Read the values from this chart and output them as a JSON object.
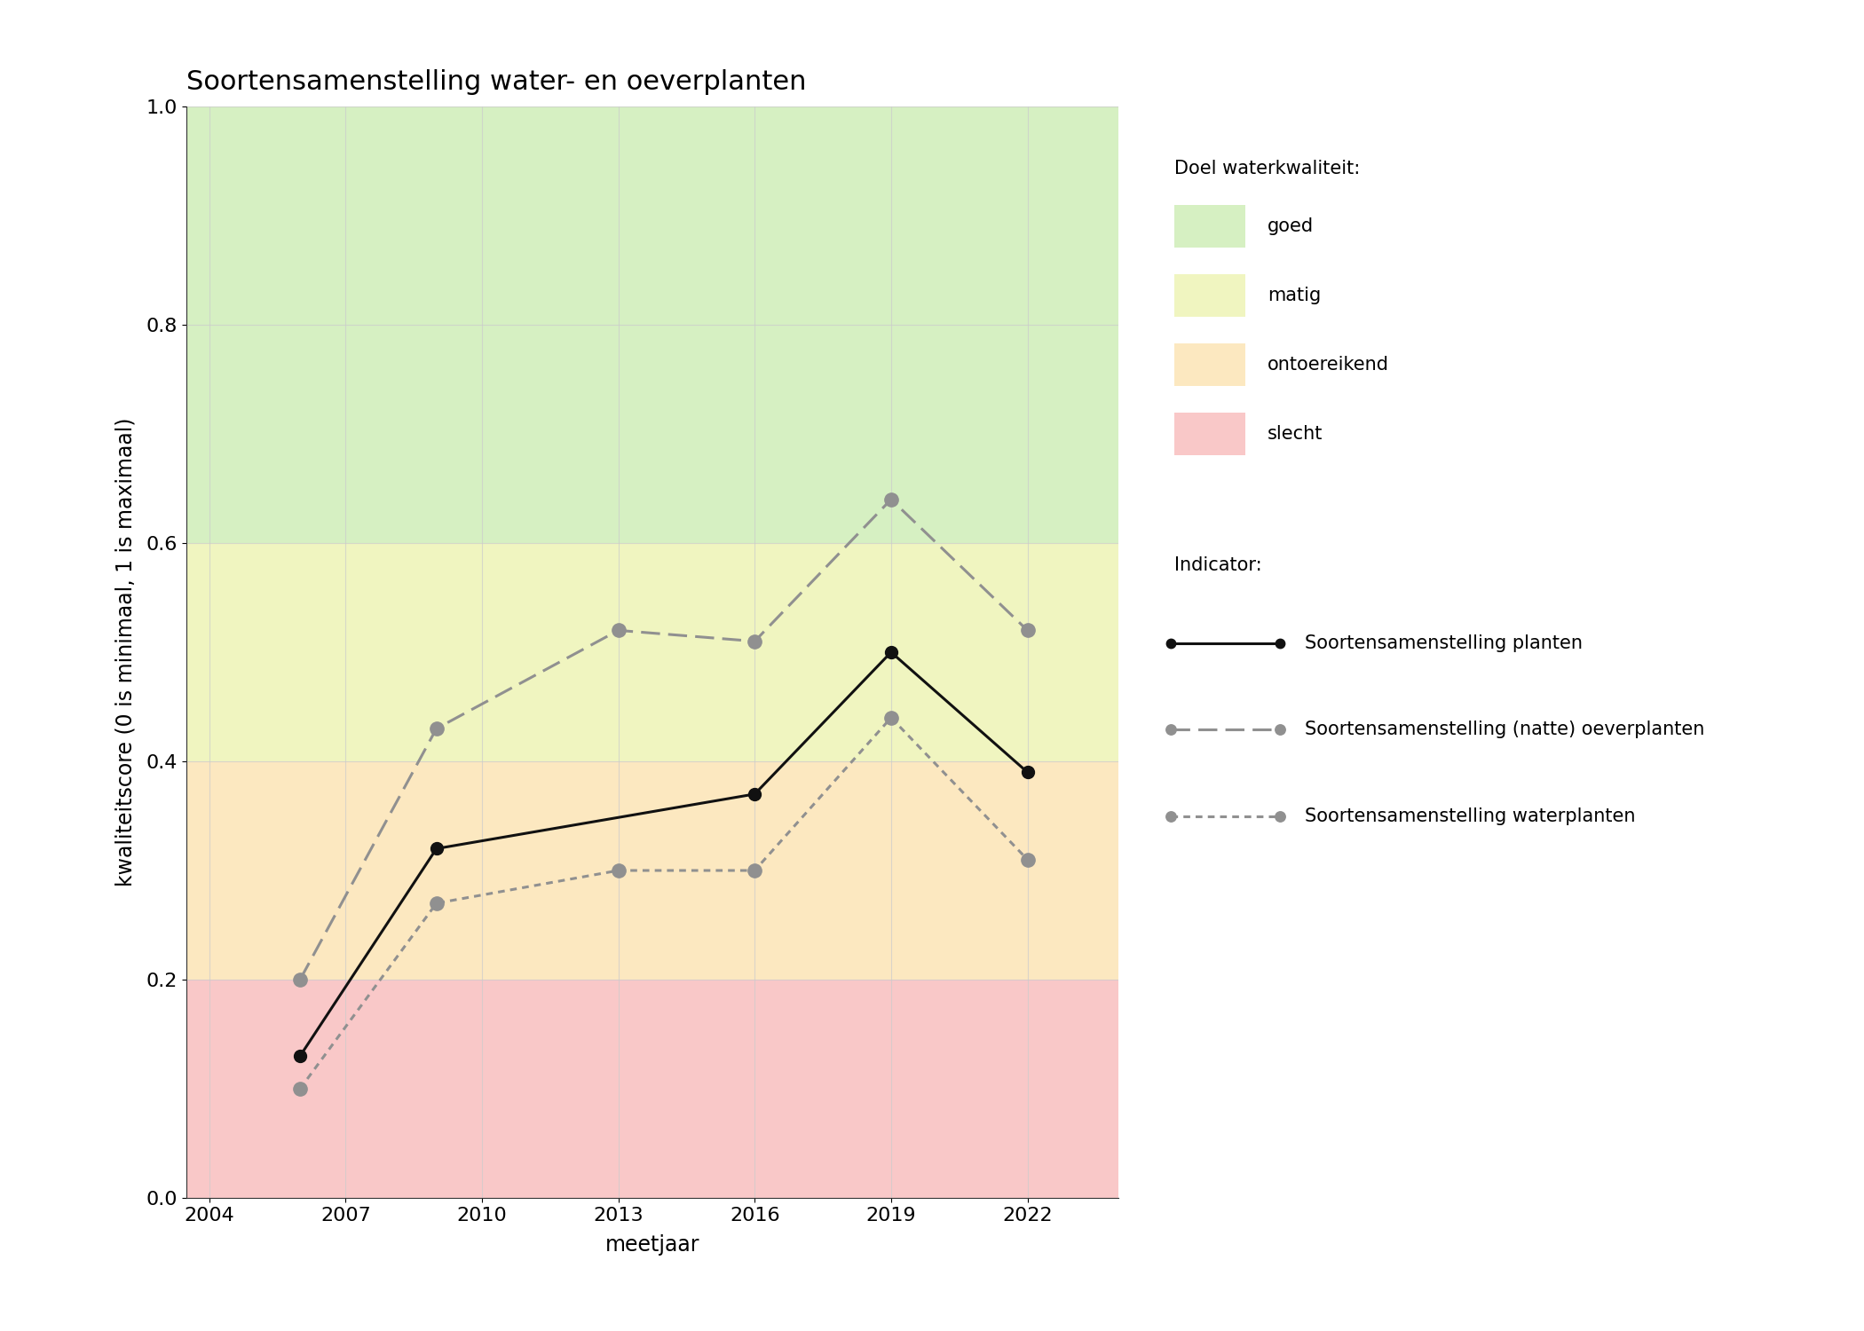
{
  "title": "Soortensamenstelling water- en oeverplanten",
  "xlabel": "meetjaar",
  "ylabel": "kwaliteitscore (0 is minimaal, 1 is maximaal)",
  "xlim": [
    2003.5,
    2024.0
  ],
  "ylim": [
    0.0,
    1.0
  ],
  "xticks": [
    2004,
    2007,
    2010,
    2013,
    2016,
    2019,
    2022
  ],
  "yticks": [
    0.0,
    0.2,
    0.4,
    0.6,
    0.8,
    1.0
  ],
  "zones": [
    {
      "ymin": 0.6,
      "ymax": 1.0,
      "color": "#d6f0c2",
      "label": "goed"
    },
    {
      "ymin": 0.4,
      "ymax": 0.6,
      "color": "#f0f5c0",
      "label": "matig"
    },
    {
      "ymin": 0.2,
      "ymax": 0.4,
      "color": "#fce8c0",
      "label": "ontoereikend"
    },
    {
      "ymin": 0.0,
      "ymax": 0.2,
      "color": "#f9c8c8",
      "label": "slecht"
    }
  ],
  "lines": [
    {
      "label": "Soortensamenstelling planten",
      "x": [
        2006,
        2009,
        2016,
        2019,
        2022
      ],
      "y": [
        0.13,
        0.32,
        0.37,
        0.5,
        0.39
      ],
      "color": "#111111",
      "linestyle": "solid",
      "linewidth": 2.2,
      "marker": "o",
      "markersize": 10,
      "markerfacecolor": "#111111",
      "markeredgecolor": "#111111"
    },
    {
      "label": "Soortensamenstelling (natte) oeverplanten",
      "x": [
        2006,
        2009,
        2013,
        2016,
        2019,
        2022
      ],
      "y": [
        0.2,
        0.43,
        0.52,
        0.51,
        0.64,
        0.52
      ],
      "color": "#909090",
      "linestyle": "dashed",
      "linewidth": 2.2,
      "marker": "o",
      "markersize": 11,
      "markerfacecolor": "#909090",
      "markeredgecolor": "#909090"
    },
    {
      "label": "Soortensamenstelling waterplanten",
      "x": [
        2006,
        2009,
        2013,
        2016,
        2019,
        2022
      ],
      "y": [
        0.1,
        0.27,
        0.3,
        0.3,
        0.44,
        0.31
      ],
      "color": "#909090",
      "linestyle": "dotted",
      "linewidth": 2.2,
      "marker": "o",
      "markersize": 11,
      "markerfacecolor": "#909090",
      "markeredgecolor": "#909090"
    }
  ],
  "legend_title_doel": "Doel waterkwaliteit:",
  "legend_title_indicator": "Indicator:",
  "background_color": "#ffffff",
  "grid_color": "#cccccc",
  "grid_alpha": 0.7,
  "title_fontsize": 22,
  "label_fontsize": 17,
  "tick_fontsize": 16,
  "legend_fontsize": 15
}
